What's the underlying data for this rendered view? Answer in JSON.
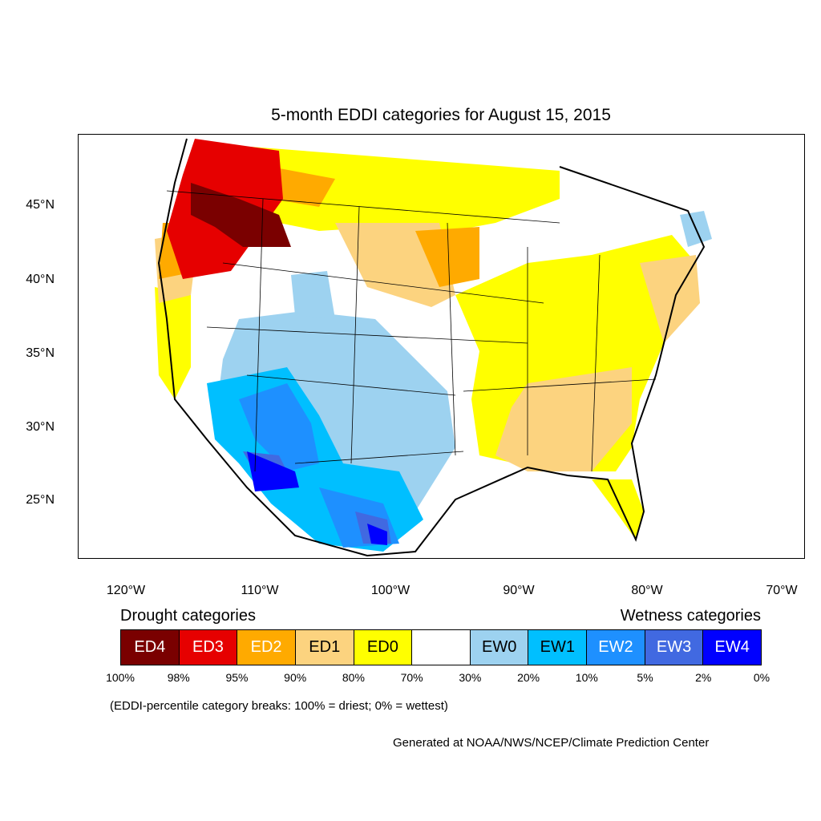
{
  "title": "5-month EDDI categories for August 15, 2015",
  "lat_labels": [
    "45°N",
    "40°N",
    "35°N",
    "30°N",
    "25°N"
  ],
  "lon_labels": [
    "120°W",
    "110°W",
    "100°W",
    "90°W",
    "80°W",
    "70°W"
  ],
  "legend": {
    "drought_heading": "Drought categories",
    "wetness_heading": "Wetness categories",
    "categories": [
      {
        "label": "ED4",
        "color": "#7a0000",
        "text_color": "#ffffff"
      },
      {
        "label": "ED3",
        "color": "#e60000",
        "text_color": "#ffffff"
      },
      {
        "label": "ED2",
        "color": "#ffaa00",
        "text_color": "#ffffff"
      },
      {
        "label": "ED1",
        "color": "#fcd37f",
        "text_color": "#000000"
      },
      {
        "label": "ED0",
        "color": "#ffff00",
        "text_color": "#000000"
      },
      {
        "label": "",
        "color": "#ffffff",
        "text_color": "#000000"
      },
      {
        "label": "EW0",
        "color": "#9dd2f0",
        "text_color": "#000000"
      },
      {
        "label": "EW1",
        "color": "#00bfff",
        "text_color": "#000000"
      },
      {
        "label": "EW2",
        "color": "#1e90ff",
        "text_color": "#ffffff"
      },
      {
        "label": "EW3",
        "color": "#4169e1",
        "text_color": "#ffffff"
      },
      {
        "label": "EW4",
        "color": "#0000ff",
        "text_color": "#ffffff"
      }
    ],
    "breaks": [
      "100%",
      "98%",
      "95%",
      "90%",
      "80%",
      "70%",
      "30%",
      "20%",
      "10%",
      "5%",
      "2%",
      "0%"
    ]
  },
  "note": "(EDDI-percentile category breaks: 100% = driest; 0% = wettest)",
  "credit": "Generated at NOAA/NWS/NCEP/Climate Prediction Center"
}
